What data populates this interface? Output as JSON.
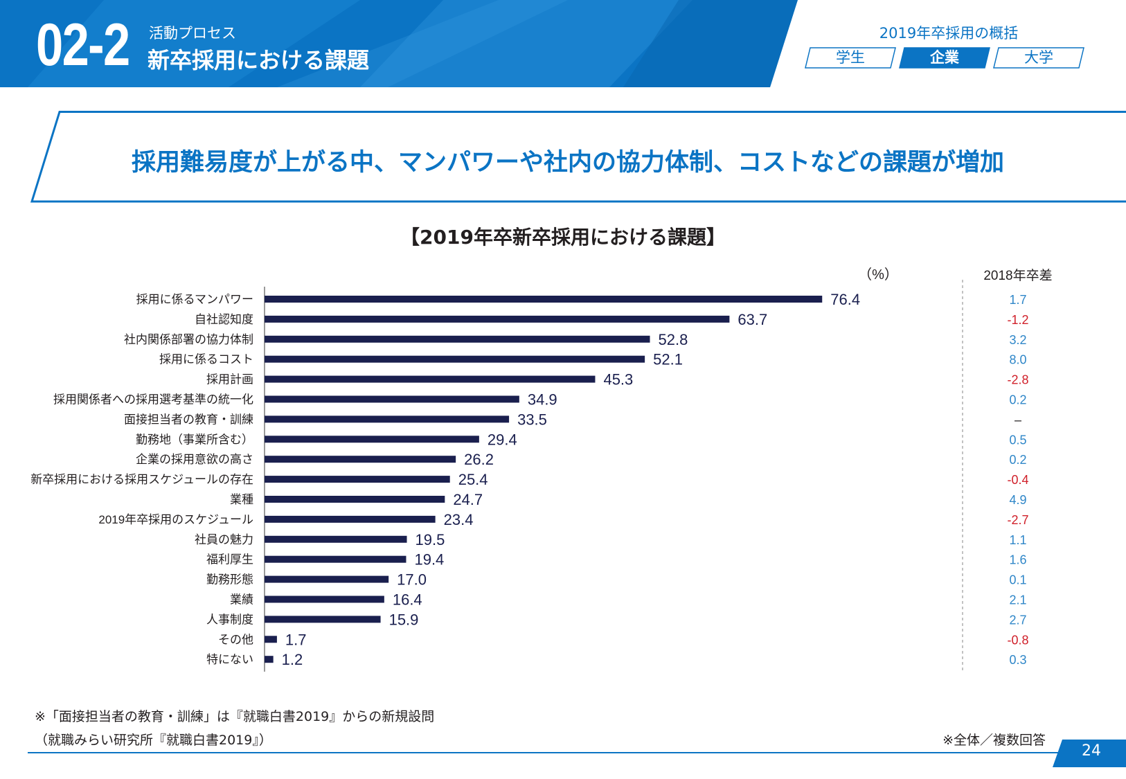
{
  "header": {
    "section_number": "02-2",
    "section_subtitle": "活動プロセス",
    "section_title": "新卒採用における課題",
    "overview_title": "2019年卒採用の概括",
    "tabs": [
      {
        "label": "学生",
        "active": false
      },
      {
        "label": "企業",
        "active": true
      },
      {
        "label": "大学",
        "active": false
      }
    ]
  },
  "headline": "採用難易度が上がる中、マンパワーや社内の協力体制、コストなどの課題が増加",
  "colors": {
    "accent": "#0b74c4",
    "bar": "#1a1f4e",
    "positive": "#2e86c8",
    "negative": "#d0202a"
  },
  "chart_data": {
    "type": "bar",
    "orientation": "horizontal",
    "title": "【2019年卒新卒採用における課題】",
    "unit_label": "（%）",
    "diff_header": "2018年卒差",
    "xlim": [
      0,
      100
    ],
    "categories": [
      "採用に係るマンパワー",
      "自社認知度",
      "社内関係部署の協力体制",
      "採用に係るコスト",
      "採用計画",
      "採用関係者への採用選考基準の統一化",
      "面接担当者の教育・訓練",
      "勤務地（事業所含む）",
      "企業の採用意欲の高さ",
      "新卒採用における採用スケジュールの存在",
      "業種",
      "2019年卒採用のスケジュール",
      "社員の魅力",
      "福利厚生",
      "勤務形態",
      "業績",
      "人事制度",
      "その他",
      "特にない"
    ],
    "values": [
      76.4,
      63.7,
      52.8,
      52.1,
      45.3,
      34.9,
      33.5,
      29.4,
      26.2,
      25.4,
      24.7,
      23.4,
      19.5,
      19.4,
      17.0,
      16.4,
      15.9,
      1.7,
      1.2
    ],
    "value_labels": [
      "76.4",
      "63.7",
      "52.8",
      "52.1",
      "45.3",
      "34.9",
      "33.5",
      "29.4",
      "26.2",
      "25.4",
      "24.7",
      "23.4",
      "19.5",
      "19.4",
      "17.0",
      "16.4",
      "15.9",
      "1.7",
      "1.2"
    ],
    "diff_2018": [
      "1.7",
      "-1.2",
      "3.2",
      "8.0",
      "-2.8",
      "0.2",
      "–",
      "0.5",
      "0.2",
      "-0.4",
      "4.9",
      "-2.7",
      "1.1",
      "1.6",
      "0.1",
      "2.1",
      "2.7",
      "-0.8",
      "0.3"
    ]
  },
  "footer": {
    "note": "※「面接担当者の教育・訓練」は『就職白書2019』からの新規設問",
    "source": "（就職みらい研究所『就職白書2019』）",
    "respondents": "※全体／複数回答",
    "page_number": "24"
  }
}
